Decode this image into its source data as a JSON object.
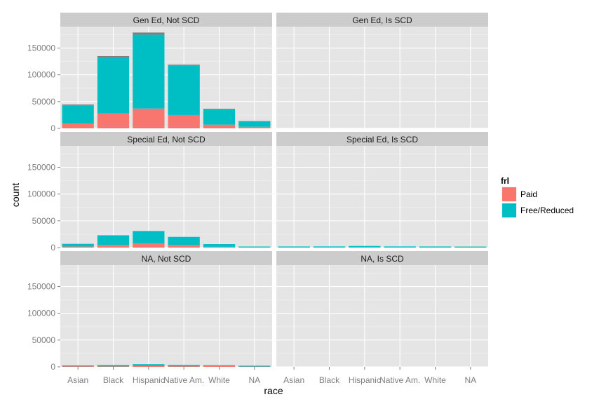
{
  "chart_data": {
    "type": "bar",
    "stacked": true,
    "xlabel": "race",
    "ylabel": "count",
    "ylim": [
      0,
      190000
    ],
    "y_ticks": [
      0,
      50000,
      100000,
      150000
    ],
    "y_tick_labels": [
      "0",
      "50000",
      "100000",
      "150000"
    ],
    "categories": [
      "Asian",
      "Black",
      "Hispanic",
      "Native Am.",
      "White",
      "NA"
    ],
    "grid": true,
    "legend": {
      "title": "frl",
      "placement": "right",
      "entries": [
        {
          "label": "Paid",
          "color": "#F8766D"
        },
        {
          "label": "Free/Reduced",
          "color": "#00BFC4"
        }
      ]
    },
    "na_fill_color": "#7F7F7F",
    "panels": [
      {
        "title": "Gen Ed, Not SCD",
        "series": [
          {
            "name": "Paid",
            "values": [
              9000,
              28000,
              37000,
              25000,
              7000,
              3000
            ]
          },
          {
            "name": "Free/Reduced",
            "values": [
              34000,
              104000,
              138000,
              92000,
              28000,
              9000
            ]
          },
          {
            "name": "NA",
            "values": [
              1000,
              3000,
              4000,
              2000,
              1000,
              500
            ]
          }
        ]
      },
      {
        "title": "Gen Ed, Is SCD",
        "series": [
          {
            "name": "Paid",
            "values": [
              0,
              0,
              0,
              0,
              0,
              0
            ]
          },
          {
            "name": "Free/Reduced",
            "values": [
              0,
              0,
              0,
              0,
              0,
              0
            ]
          },
          {
            "name": "NA",
            "values": [
              0,
              0,
              0,
              0,
              0,
              0
            ]
          }
        ]
      },
      {
        "title": "Special Ed, Not SCD",
        "series": [
          {
            "name": "Paid",
            "values": [
              2000,
              5000,
              8000,
              5000,
              1500,
              400
            ]
          },
          {
            "name": "Free/Reduced",
            "values": [
              5000,
              18000,
              23000,
              15000,
              5000,
              1200
            ]
          },
          {
            "name": "NA",
            "values": [
              0,
              0,
              0,
              0,
              0,
              0
            ]
          }
        ]
      },
      {
        "title": "Special Ed, Is SCD",
        "series": [
          {
            "name": "Paid",
            "values": [
              500,
              600,
              800,
              600,
              500,
              300
            ]
          },
          {
            "name": "Free/Reduced",
            "values": [
              700,
              1500,
              2200,
              1500,
              400,
              500
            ]
          },
          {
            "name": "NA",
            "values": [
              0,
              0,
              0,
              0,
              0,
              0
            ]
          }
        ]
      },
      {
        "title": "NA, Not SCD",
        "series": [
          {
            "name": "Paid",
            "values": [
              1000,
              800,
              1500,
              1000,
              1500,
              500
            ]
          },
          {
            "name": "Free/Reduced",
            "values": [
              400,
              2500,
              3500,
              2500,
              300,
              800
            ]
          },
          {
            "name": "NA",
            "values": [
              0,
              0,
              0,
              0,
              0,
              0
            ]
          }
        ]
      },
      {
        "title": "NA, Is SCD",
        "series": [
          {
            "name": "Paid",
            "values": [
              0,
              0,
              0,
              0,
              0,
              0
            ]
          },
          {
            "name": "Free/Reduced",
            "values": [
              0,
              0,
              0,
              0,
              0,
              0
            ]
          },
          {
            "name": "NA",
            "values": [
              0,
              0,
              0,
              0,
              0,
              0
            ]
          }
        ]
      }
    ]
  }
}
